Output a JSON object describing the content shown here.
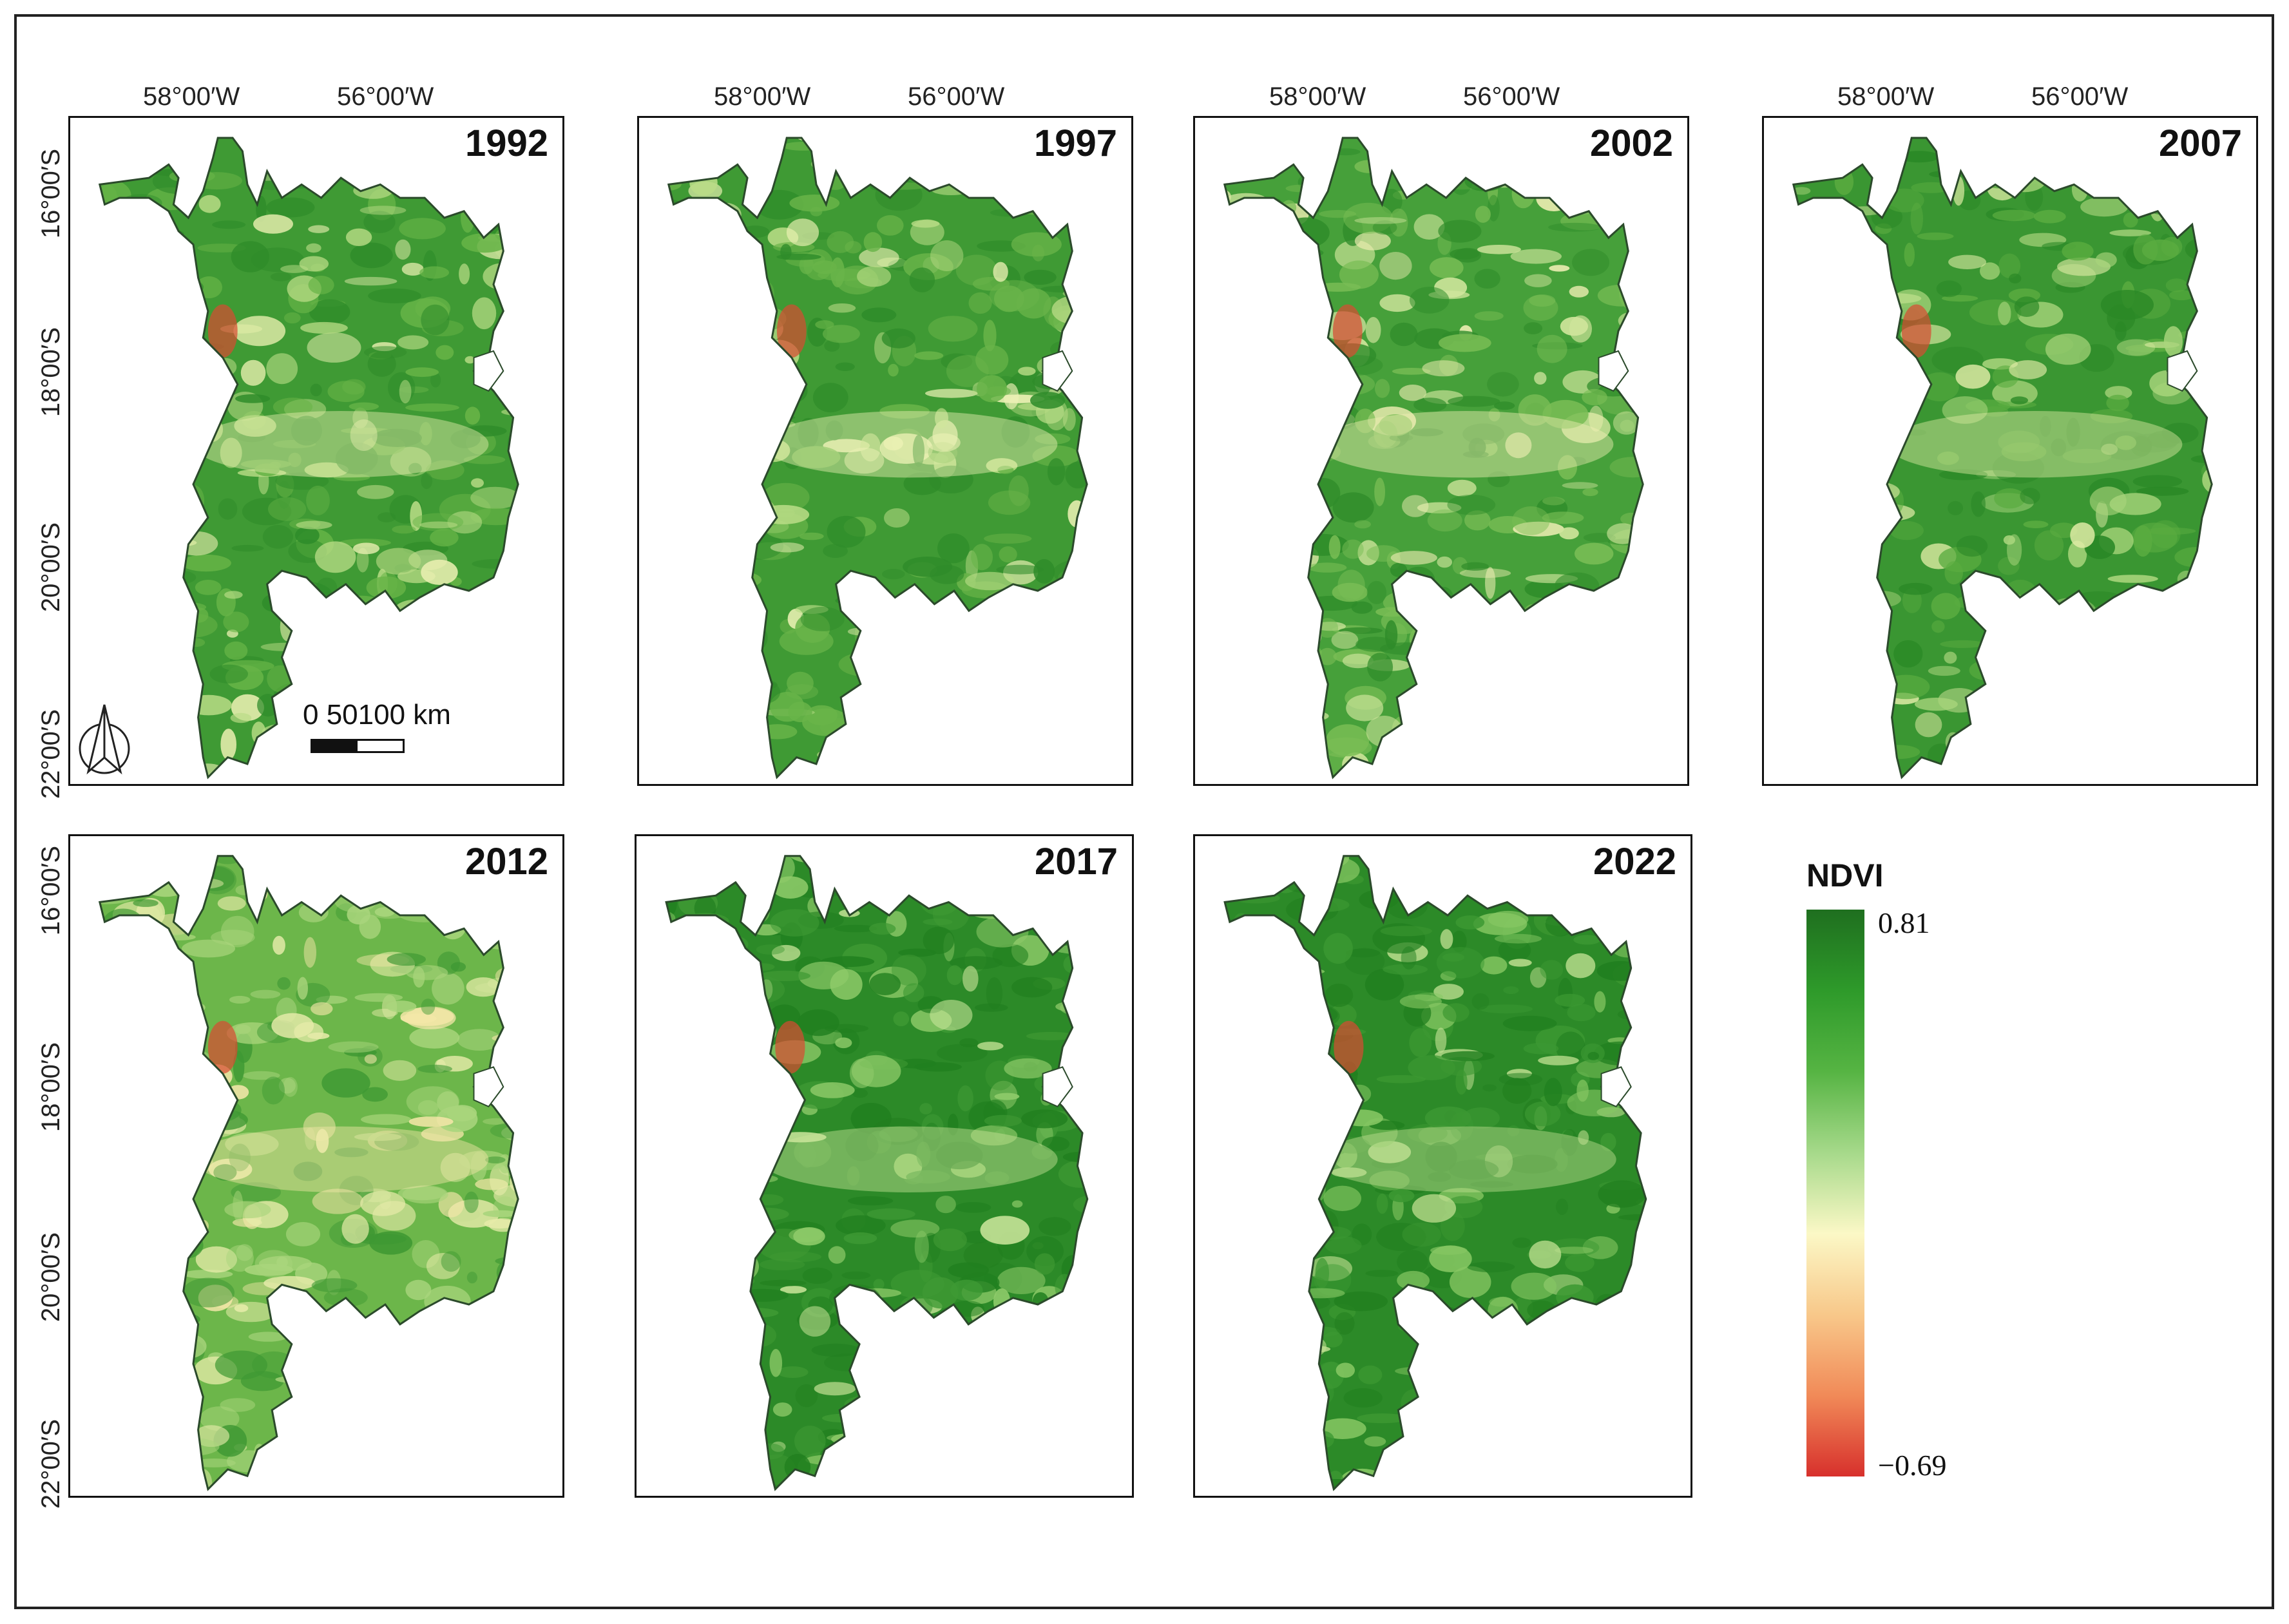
{
  "figure": {
    "lon_labels": [
      "58°00′W",
      "56°00′W"
    ],
    "lat_labels": [
      "16°00′S",
      "18°00′S",
      "20°00′S",
      "22°00′S"
    ],
    "panels": [
      {
        "year": "1992",
        "ndvi_palette": [
          "#3f9a34",
          "#67b447",
          "#2f8c2a",
          "#b9dc86",
          "#e9efb0"
        ]
      },
      {
        "year": "1997",
        "ndvi_palette": [
          "#3f9a34",
          "#69b449",
          "#2f8c2a",
          "#b9dc86",
          "#eef2b6"
        ]
      },
      {
        "year": "2002",
        "ndvi_palette": [
          "#46a03a",
          "#79bd55",
          "#2f8c2a",
          "#d0e59c",
          "#f1efb5"
        ]
      },
      {
        "year": "2007",
        "ndvi_palette": [
          "#3a9632",
          "#5aac40",
          "#2a8826",
          "#a9d57c",
          "#e2eda7"
        ]
      },
      {
        "year": "2012",
        "ndvi_palette": [
          "#6cb64a",
          "#a9d57c",
          "#3e9833",
          "#e6eba9",
          "#f3e6a8"
        ]
      },
      {
        "year": "2017",
        "ndvi_palette": [
          "#2c8a28",
          "#3f9a34",
          "#217f1f",
          "#8fcb6a",
          "#c9e59a"
        ]
      },
      {
        "year": "2022",
        "ndvi_palette": [
          "#2c8a28",
          "#3c9832",
          "#217f1f",
          "#86c763",
          "#c2e193"
        ]
      }
    ],
    "scale_bar": {
      "label": "0   50100 km"
    },
    "north_arrow": {
      "icon": "north-arrow-icon"
    },
    "legend": {
      "title": "NDVI",
      "max_label": "0.81",
      "min_label": "−0.69",
      "max": 0.81,
      "min": -0.69,
      "colors": [
        "#1f6f1f",
        "#2e9a2a",
        "#56b443",
        "#a6d98a",
        "#fbf8c6",
        "#f8c88a",
        "#f18a58",
        "#d7302c"
      ]
    }
  }
}
